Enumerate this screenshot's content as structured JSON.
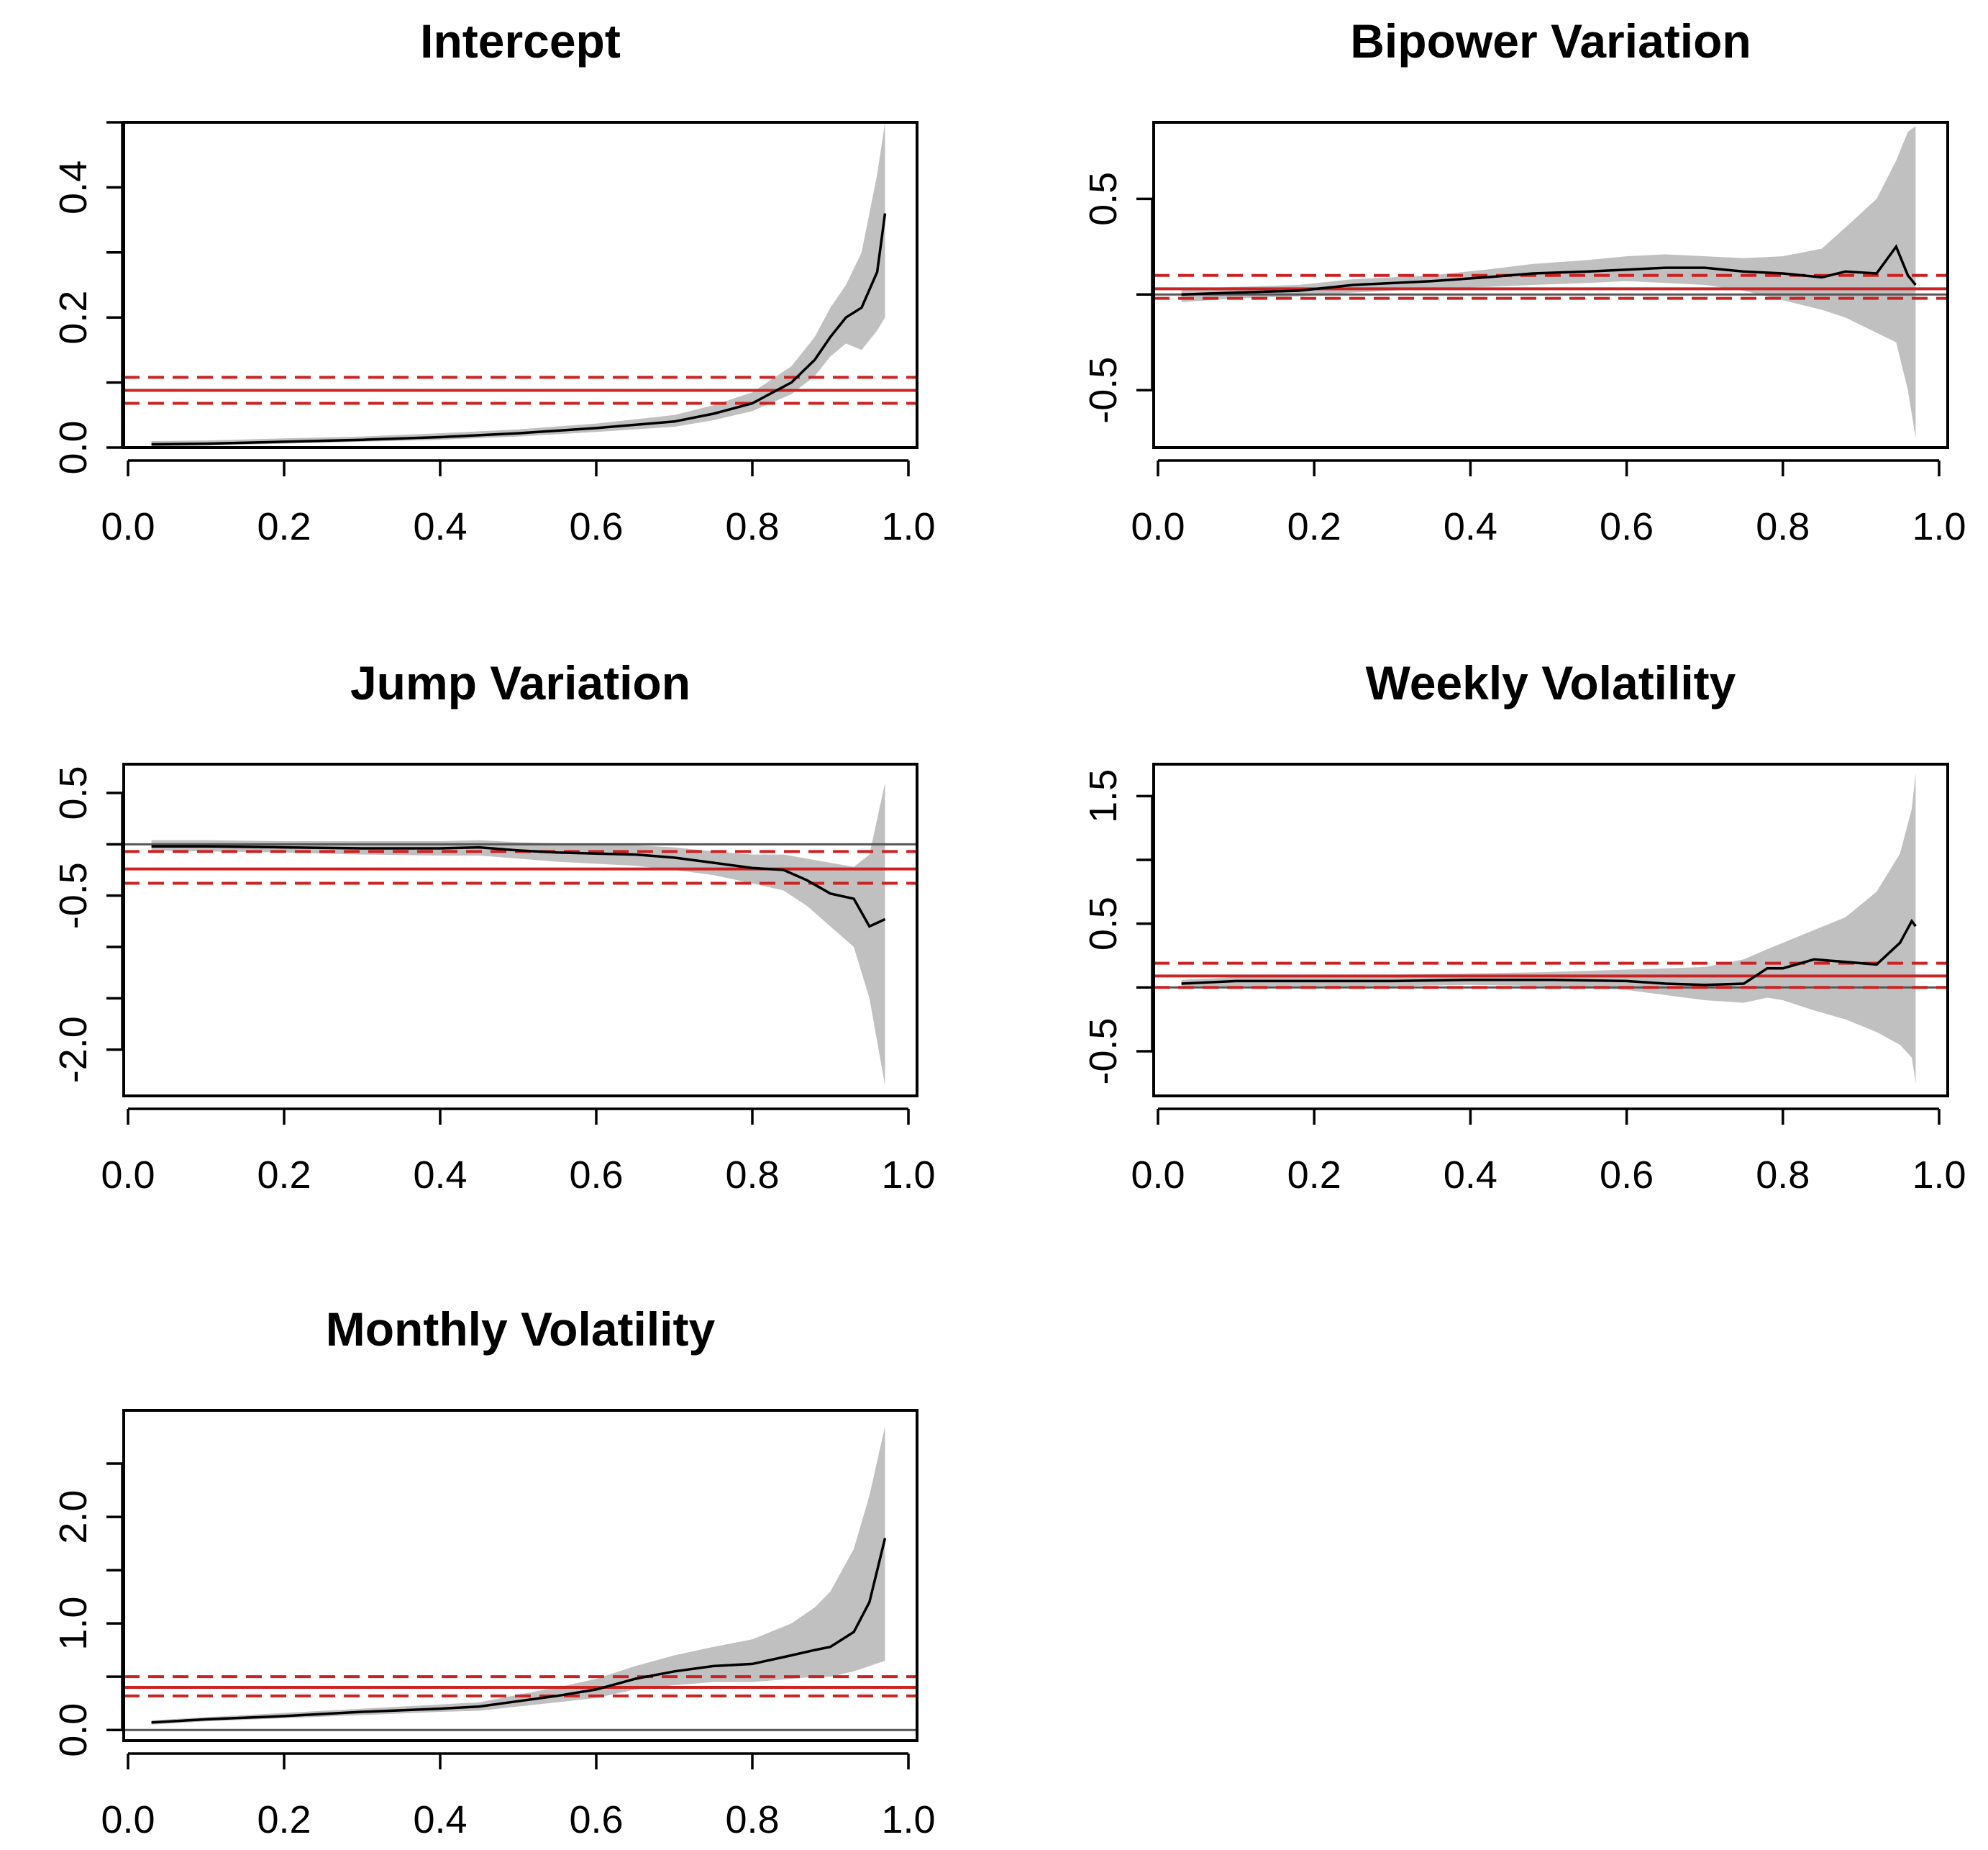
{
  "colors": {
    "band": "#c0c0c0",
    "quantile_line": "#000000",
    "ols_line": "#cc2222",
    "zero_line": "#555555",
    "frame": "#000000"
  },
  "chart_data": [
    {
      "type": "line",
      "title": "Intercept",
      "xlabel": "",
      "ylabel": "",
      "xlim": [
        0,
        1
      ],
      "ylim": [
        0,
        0.5
      ],
      "x_ticks": [
        "0.0",
        "0.2",
        "0.4",
        "0.6",
        "0.8",
        "1.0"
      ],
      "y_ticks": [
        0,
        0.1,
        0.2,
        0.3,
        0.4,
        0.5
      ],
      "y_tick_labels": [
        "0.0",
        "",
        "0.2",
        "",
        "0.4",
        ""
      ],
      "reference": 0,
      "ols": {
        "estimate": 0.088,
        "lower": 0.068,
        "upper": 0.108
      },
      "quantile_estimate": {
        "x": [
          0.03,
          0.1,
          0.2,
          0.3,
          0.4,
          0.5,
          0.6,
          0.7,
          0.75,
          0.8,
          0.85,
          0.88,
          0.9,
          0.92,
          0.94,
          0.96,
          0.97
        ],
        "y": [
          0.005,
          0.006,
          0.009,
          0.012,
          0.016,
          0.022,
          0.03,
          0.04,
          0.052,
          0.068,
          0.1,
          0.135,
          0.17,
          0.2,
          0.215,
          0.27,
          0.36
        ],
        "lower": [
          0.002,
          0.003,
          0.006,
          0.009,
          0.012,
          0.017,
          0.024,
          0.032,
          0.042,
          0.056,
          0.082,
          0.11,
          0.14,
          0.16,
          0.15,
          0.18,
          0.2
        ],
        "upper": [
          0.01,
          0.011,
          0.014,
          0.017,
          0.022,
          0.028,
          0.037,
          0.05,
          0.065,
          0.085,
          0.125,
          0.17,
          0.215,
          0.25,
          0.3,
          0.42,
          0.5
        ]
      }
    },
    {
      "type": "line",
      "title": "Bipower Variation",
      "xlabel": "",
      "ylabel": "",
      "xlim": [
        0,
        1
      ],
      "ylim": [
        -0.8,
        0.9
      ],
      "x_ticks": [
        "0.0",
        "0.2",
        "0.4",
        "0.6",
        "0.8",
        "1.0"
      ],
      "y_ticks": [
        -0.5,
        0,
        0.5
      ],
      "y_tick_labels": [
        "-0.5",
        "",
        "0.5"
      ],
      "reference": 0,
      "ols": {
        "estimate": 0.03,
        "lower": -0.02,
        "upper": 0.1
      },
      "quantile_estimate": {
        "x": [
          0.03,
          0.1,
          0.18,
          0.25,
          0.35,
          0.42,
          0.48,
          0.55,
          0.6,
          0.65,
          0.7,
          0.75,
          0.8,
          0.85,
          0.88,
          0.92,
          0.945,
          0.96,
          0.97
        ],
        "y": [
          0.0,
          0.01,
          0.02,
          0.05,
          0.07,
          0.09,
          0.11,
          0.12,
          0.13,
          0.14,
          0.14,
          0.12,
          0.11,
          0.09,
          0.12,
          0.11,
          0.25,
          0.1,
          0.05
        ],
        "lower": [
          -0.04,
          -0.02,
          -0.01,
          0.01,
          0.03,
          0.04,
          0.05,
          0.06,
          0.07,
          0.06,
          0.05,
          0.02,
          -0.03,
          -0.08,
          -0.12,
          -0.2,
          -0.25,
          -0.5,
          -0.75
        ],
        "upper": [
          0.03,
          0.04,
          0.05,
          0.08,
          0.1,
          0.13,
          0.16,
          0.18,
          0.2,
          0.21,
          0.2,
          0.19,
          0.2,
          0.24,
          0.35,
          0.5,
          0.7,
          0.85,
          0.88
        ]
      }
    },
    {
      "type": "line",
      "title": "Jump Variation",
      "xlabel": "",
      "ylabel": "",
      "xlim": [
        0,
        1
      ],
      "ylim": [
        -2.45,
        0.78
      ],
      "x_ticks": [
        "0.0",
        "0.2",
        "0.4",
        "0.6",
        "0.8",
        "1.0"
      ],
      "y_ticks": [
        -2.0,
        -1.5,
        -1.0,
        -0.5,
        0.0,
        0.5
      ],
      "y_tick_labels": [
        "-2.0",
        "",
        "",
        "-0.5",
        "",
        "0.5"
      ],
      "reference": 0,
      "ols": {
        "estimate": -0.24,
        "lower": -0.38,
        "upper": -0.07
      },
      "quantile_estimate": {
        "x": [
          0.03,
          0.1,
          0.2,
          0.3,
          0.4,
          0.45,
          0.5,
          0.55,
          0.6,
          0.65,
          0.7,
          0.75,
          0.8,
          0.84,
          0.87,
          0.9,
          0.93,
          0.95,
          0.97
        ],
        "y": [
          -0.02,
          -0.02,
          -0.03,
          -0.04,
          -0.04,
          -0.03,
          -0.06,
          -0.08,
          -0.09,
          -0.1,
          -0.13,
          -0.18,
          -0.23,
          -0.25,
          -0.35,
          -0.48,
          -0.53,
          -0.8,
          -0.73
        ],
        "lower": [
          -0.06,
          -0.07,
          -0.08,
          -0.1,
          -0.11,
          -0.11,
          -0.14,
          -0.17,
          -0.19,
          -0.21,
          -0.25,
          -0.3,
          -0.38,
          -0.45,
          -0.6,
          -0.8,
          -1.0,
          -1.5,
          -2.35
        ],
        "upper": [
          0.04,
          0.04,
          0.03,
          0.03,
          0.03,
          0.04,
          0.02,
          0.01,
          0.0,
          -0.01,
          -0.03,
          -0.07,
          -0.1,
          -0.1,
          -0.14,
          -0.18,
          -0.22,
          -0.1,
          0.6
        ]
      }
    },
    {
      "type": "line",
      "title": "Weekly Volatility",
      "xlabel": "",
      "ylabel": "",
      "xlim": [
        0,
        1
      ],
      "ylim": [
        -0.85,
        1.75
      ],
      "x_ticks": [
        "0.0",
        "0.2",
        "0.4",
        "0.6",
        "0.8",
        "1.0"
      ],
      "y_ticks": [
        -0.5,
        0,
        0.5,
        1.0,
        1.5
      ],
      "y_tick_labels": [
        "-0.5",
        "",
        "0.5",
        "",
        "1.5"
      ],
      "reference": 0,
      "ols": {
        "estimate": 0.09,
        "lower": 0.0,
        "upper": 0.19
      },
      "quantile_estimate": {
        "x": [
          0.03,
          0.1,
          0.2,
          0.3,
          0.4,
          0.5,
          0.6,
          0.65,
          0.7,
          0.75,
          0.78,
          0.8,
          0.84,
          0.88,
          0.92,
          0.95,
          0.965,
          0.97
        ],
        "y": [
          0.03,
          0.05,
          0.05,
          0.05,
          0.06,
          0.06,
          0.05,
          0.03,
          0.02,
          0.03,
          0.15,
          0.15,
          0.22,
          0.2,
          0.18,
          0.35,
          0.52,
          0.48
        ],
        "lower": [
          0.0,
          0.01,
          0.01,
          0.01,
          0.02,
          0.01,
          -0.02,
          -0.06,
          -0.1,
          -0.12,
          -0.08,
          -0.1,
          -0.18,
          -0.25,
          -0.35,
          -0.45,
          -0.55,
          -0.75
        ],
        "upper": [
          0.06,
          0.08,
          0.09,
          0.1,
          0.11,
          0.12,
          0.14,
          0.15,
          0.16,
          0.22,
          0.3,
          0.35,
          0.45,
          0.55,
          0.75,
          1.05,
          1.4,
          1.68
        ]
      }
    },
    {
      "type": "line",
      "title": "Monthly Volatility",
      "xlabel": "",
      "ylabel": "",
      "xlim": [
        0,
        1
      ],
      "ylim": [
        -0.1,
        3.0
      ],
      "x_ticks": [
        "0.0",
        "0.2",
        "0.4",
        "0.6",
        "0.8",
        "1.0"
      ],
      "y_ticks": [
        0.0,
        0.5,
        1.0,
        1.5,
        2.0,
        2.5
      ],
      "y_tick_labels": [
        "0.0",
        "",
        "1.0",
        "",
        "2.0",
        ""
      ],
      "reference": 0,
      "ols": {
        "estimate": 0.4,
        "lower": 0.32,
        "upper": 0.5
      },
      "quantile_estimate": {
        "x": [
          0.03,
          0.1,
          0.2,
          0.3,
          0.4,
          0.45,
          0.5,
          0.55,
          0.6,
          0.65,
          0.7,
          0.75,
          0.8,
          0.85,
          0.88,
          0.9,
          0.93,
          0.95,
          0.97
        ],
        "y": [
          0.07,
          0.1,
          0.13,
          0.17,
          0.2,
          0.22,
          0.27,
          0.32,
          0.38,
          0.48,
          0.55,
          0.6,
          0.62,
          0.7,
          0.75,
          0.78,
          0.92,
          1.2,
          1.8
        ],
        "lower": [
          0.05,
          0.08,
          0.11,
          0.14,
          0.17,
          0.18,
          0.22,
          0.26,
          0.3,
          0.38,
          0.42,
          0.45,
          0.45,
          0.48,
          0.5,
          0.5,
          0.55,
          0.6,
          0.65
        ],
        "upper": [
          0.09,
          0.12,
          0.16,
          0.2,
          0.24,
          0.26,
          0.33,
          0.4,
          0.48,
          0.6,
          0.7,
          0.78,
          0.85,
          1.0,
          1.15,
          1.3,
          1.7,
          2.2,
          2.85
        ]
      }
    }
  ]
}
